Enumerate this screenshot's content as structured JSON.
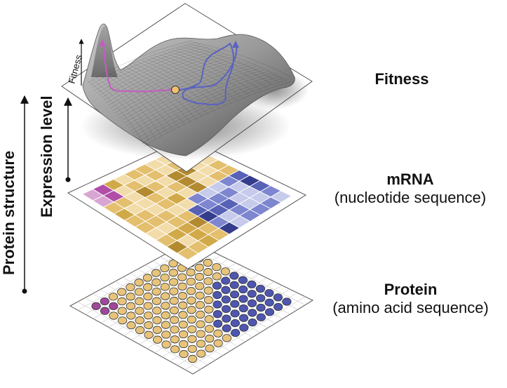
{
  "layers": {
    "fitness": {
      "title": "Fitness"
    },
    "mrna": {
      "title": "mRNA",
      "subtitle": "(nucleotide sequence)"
    },
    "protein": {
      "title": "Protein",
      "subtitle": "(amino acid sequence)"
    }
  },
  "axes": {
    "protein_structure": "Protein structure",
    "expression_level": "Expression level",
    "fitness_axis": "Fitness"
  },
  "colors": {
    "magenta": "#b04ea8",
    "magenta_light": "#d9a6d3",
    "gold_light": "#f2dcaa",
    "gold": "#e3bf6e",
    "gold_mid": "#d2a948",
    "gold_dark": "#b38a2f",
    "blue_light": "#c6cbeb",
    "blue": "#7d86cf",
    "blue_mid": "#5761b6",
    "blue_dark": "#343c8c",
    "protein_gold": "#e8c47a",
    "protein_blue": "#4e56b0",
    "protein_magenta": "#a0479a",
    "path_magenta": "#c45cc0",
    "path_blue": "#5a62c0",
    "start_point": "#f0c070"
  }
}
